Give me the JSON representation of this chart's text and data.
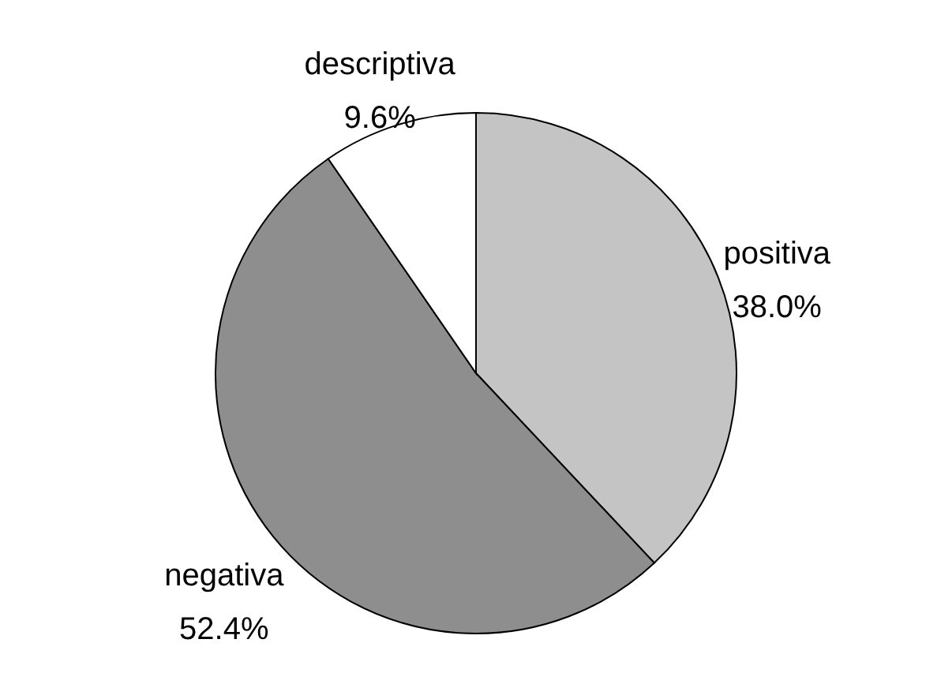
{
  "chart_data": {
    "type": "pie",
    "categories": [
      "positiva",
      "negativa",
      "descriptiva"
    ],
    "values": [
      38.0,
      52.4,
      9.6
    ],
    "value_labels": [
      "38.0%",
      "52.4%",
      "9.6%"
    ],
    "colors": [
      "#c4c4c4",
      "#8e8e8e",
      "#ffffff"
    ]
  }
}
